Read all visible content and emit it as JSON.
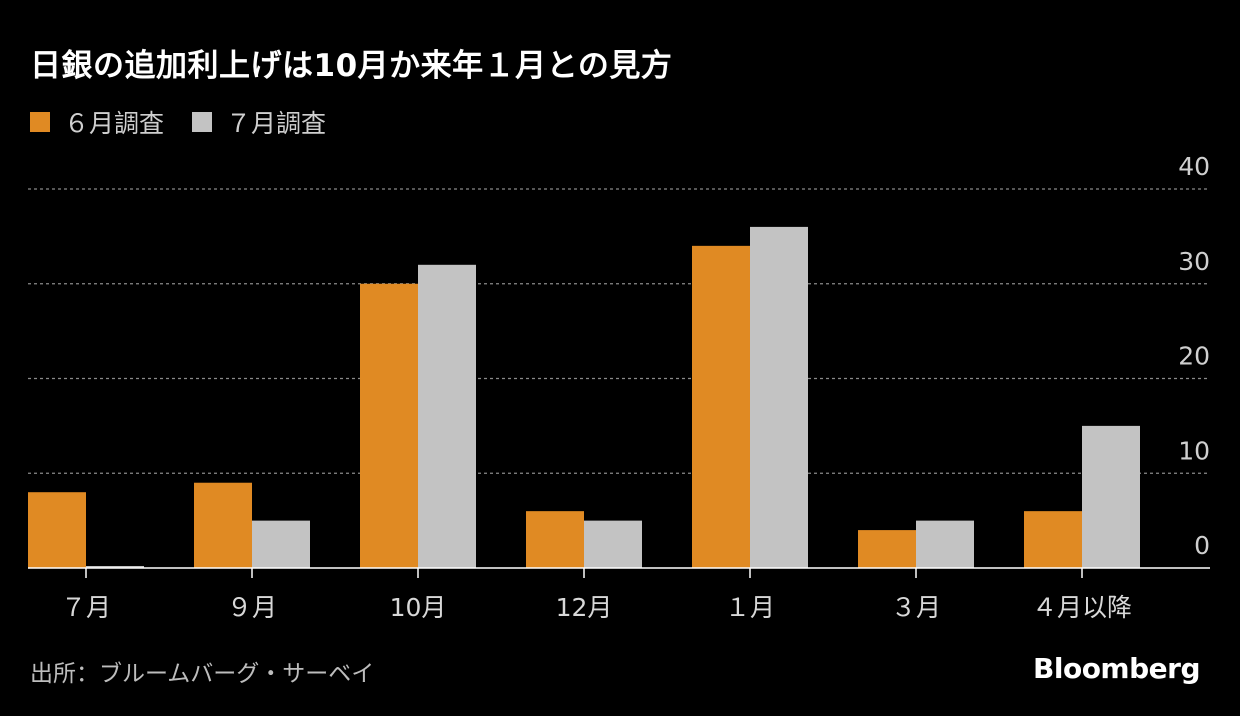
{
  "title": "日銀の追加利上げは10月か来年１月との見方",
  "source": "出所：ブルームバーグ・サーベイ",
  "brand": "Bloomberg",
  "colors": {
    "june": "#E08A23",
    "july": "#C3C3C3",
    "background": "#000000",
    "grid": "#8a8a8a",
    "axis": "#ffffff"
  },
  "chart_data": {
    "type": "bar",
    "title": "日銀の追加利上げは10月か来年１月との見方",
    "categories": [
      "７月",
      "９月",
      "10月",
      "12月",
      "１月",
      "３月",
      "４月以降"
    ],
    "series": [
      {
        "name": "６月調査",
        "values": [
          8,
          9,
          30,
          6,
          34,
          4,
          6
        ]
      },
      {
        "name": "７月調査",
        "values": [
          0,
          5,
          32,
          5,
          36,
          5,
          15
        ]
      }
    ],
    "y_ticks": [
      "40",
      "30",
      "20",
      "10",
      "0"
    ],
    "ylim": [
      0,
      40
    ],
    "xlabel": "",
    "ylabel": "",
    "grid": true,
    "legend_position": "top-left",
    "y_axis_side": "right"
  }
}
